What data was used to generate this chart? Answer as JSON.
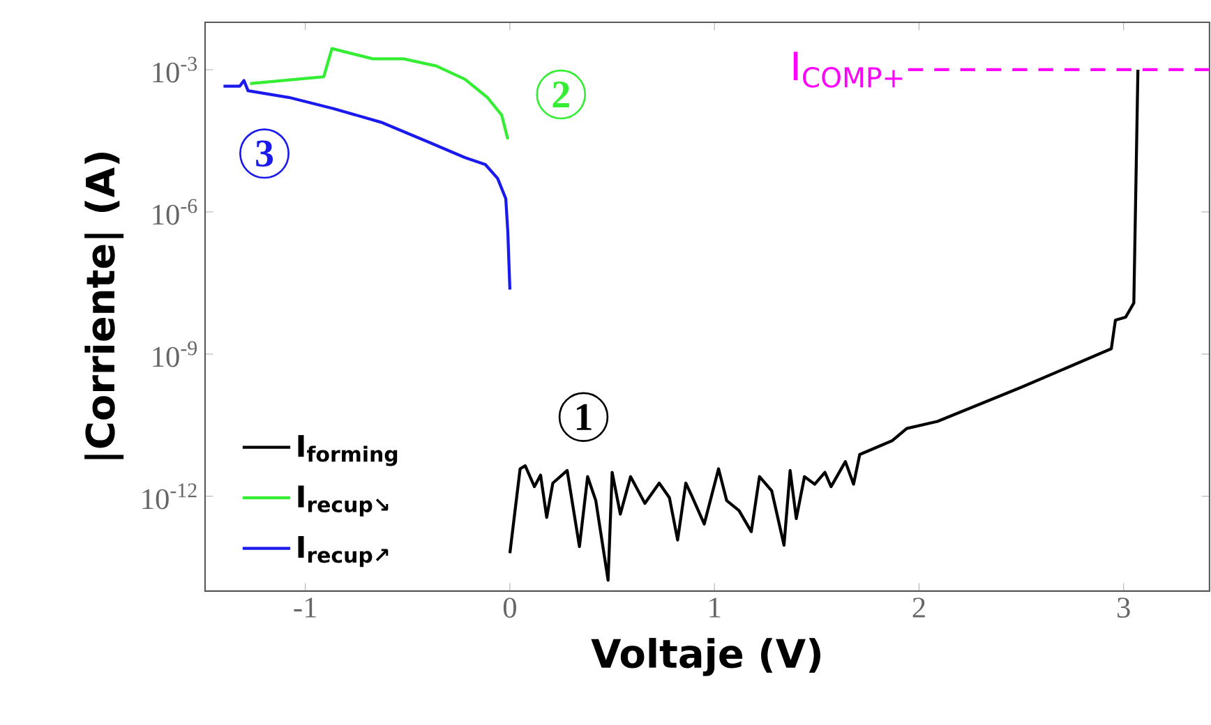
{
  "chart_data": {
    "type": "line",
    "xlabel": "Voltaje (V)",
    "ylabel": "|Corriente| (A)",
    "log": "y",
    "xlim": [
      -1.49,
      3.42
    ],
    "ylim": [
      1e-14,
      0.01
    ],
    "xticks": [
      -1,
      0,
      1,
      2,
      3
    ],
    "yticks": [
      {
        "value": 1e-12,
        "label": "10$^{-12}$"
      },
      {
        "value": 1e-09,
        "label": "10$^{-9}$"
      },
      {
        "value": 1e-06,
        "label": "10$^{-6}$"
      },
      {
        "value": 0.001,
        "label": "10$^{-3}$"
      }
    ],
    "legend": "bottom left",
    "series": [
      {
        "name": "I$_{forming}$",
        "color": "#000000",
        "x": [
          0.0,
          0.05,
          0.075,
          0.12,
          0.15,
          0.18,
          0.21,
          0.28,
          0.34,
          0.38,
          0.42,
          0.48,
          0.5,
          0.54,
          0.59,
          0.66,
          0.73,
          0.78,
          0.82,
          0.86,
          0.89,
          0.95,
          1.02,
          1.06,
          1.12,
          1.18,
          1.22,
          1.28,
          1.34,
          1.37,
          1.4,
          1.44,
          1.49,
          1.54,
          1.57,
          1.64,
          1.68,
          1.71,
          1.87,
          1.94,
          2.09,
          2.5,
          2.94,
          2.96,
          3.01,
          3.05,
          3.07
        ],
        "values": [
          6.3e-14,
          3.8e-12,
          4.4e-12,
          1.6e-12,
          2.8e-12,
          3.6e-13,
          1.9e-12,
          3.5e-12,
          8.7e-14,
          2.6e-12,
          8.1e-13,
          1.7e-14,
          3.2e-12,
          4.2e-13,
          2.6e-12,
          7.1e-13,
          1.9e-12,
          9.3e-13,
          1.2e-13,
          1.9e-12,
          1e-12,
          2.6e-13,
          3.8e-12,
          8.1e-13,
          5e-13,
          1.8e-13,
          2.6e-12,
          1.3e-12,
          9.3e-14,
          3.5e-12,
          3.4e-13,
          2.6e-12,
          1.8e-12,
          3.2e-12,
          1.6e-12,
          5.4e-12,
          1.8e-12,
          7.6e-12,
          1.5e-11,
          2.7e-11,
          3.8e-11,
          2e-10,
          1.3e-09,
          5.2e-09,
          6e-09,
          1.2e-08,
          0.001
        ]
      },
      {
        "name": "I$_{recup↘}$",
        "color": "#33ee33",
        "x": [
          -1.27,
          -0.91,
          -0.87,
          -0.81,
          -0.67,
          -0.52,
          -0.36,
          -0.22,
          -0.11,
          -0.04,
          -0.01
        ],
        "values": [
          0.00051,
          0.00071,
          0.0028,
          0.0024,
          0.0017,
          0.0017,
          0.0012,
          0.00063,
          0.00026,
          0.00011,
          3.4e-05
        ]
      },
      {
        "name": "I$_{recup↗}$",
        "color": "#1a1aee",
        "x": [
          -1.4,
          -1.32,
          -1.3,
          -1.28,
          -1.08,
          -0.86,
          -0.63,
          -0.4,
          -0.22,
          -0.12,
          -0.06,
          -0.02,
          -0.01,
          0.0
        ],
        "values": [
          0.00045,
          0.00045,
          0.00059,
          0.00036,
          0.00026,
          0.00015,
          7.8e-05,
          3e-05,
          1.4e-05,
          1e-05,
          5.1e-06,
          1.9e-06,
          3.7e-07,
          2.3e-08
        ]
      }
    ],
    "ref_lines": [
      {
        "axis": "y",
        "value": 0.001,
        "label": "I$_{COMP+}$",
        "color": "#ff00ff",
        "line_style": "dashed"
      }
    ],
    "annotations": [
      {
        "text": "1",
        "x": 0.36,
        "y": 4.7e-11
      },
      {
        "text": "2",
        "x": 0.25,
        "y": 0.0003
      },
      {
        "text": "3",
        "x": -1.2,
        "y": 1.7e-05
      }
    ]
  }
}
